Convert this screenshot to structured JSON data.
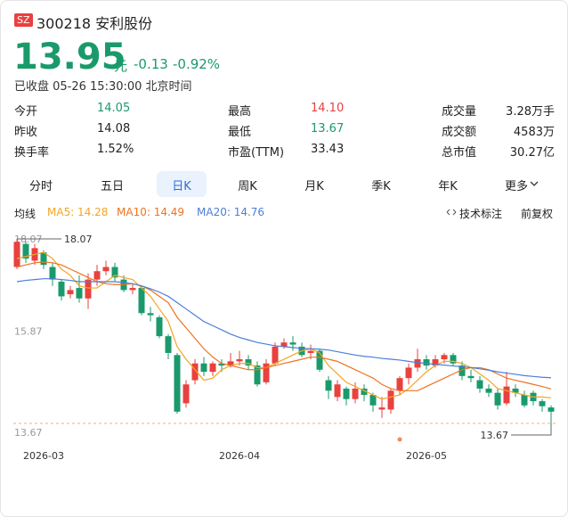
{
  "header": {
    "badge": "SZ",
    "code_name": "300218 安利股份",
    "price": "13.95",
    "unit": "元",
    "change": "-0.13",
    "change_pct": "-0.92%",
    "status": "已收盘 05-26 15:30:00 北京时间"
  },
  "stats": [
    [
      "今开",
      "14.05",
      "最高",
      "14.10",
      "成交量",
      "3.28万手"
    ],
    [
      "昨收",
      "14.08",
      "最低",
      "13.67",
      "成交额",
      "4583万"
    ],
    [
      "换手率",
      "1.52%",
      "市盈(TTM)",
      "33.43",
      "总市值",
      "30.27亿"
    ]
  ],
  "tabs": [
    "分时",
    "五日",
    "日K",
    "周K",
    "月K",
    "季K",
    "年K",
    "更多"
  ],
  "tools": [
    "技术标注",
    "前复权"
  ],
  "chart_data": {
    "type": "candlestick",
    "indicator_label": "均线",
    "categories": [
      null,
      null,
      null,
      "2026-03",
      null,
      null,
      null,
      null,
      null,
      null,
      null,
      null,
      null,
      null,
      null,
      null,
      null,
      null,
      null,
      null,
      null,
      null,
      null,
      null,
      null,
      "2026-04",
      null,
      null,
      null,
      null,
      null,
      null,
      null,
      null,
      null,
      null,
      null,
      null,
      null,
      null,
      null,
      null,
      null,
      null,
      null,
      null,
      "2026-05",
      null,
      null,
      null,
      null,
      null,
      null,
      null,
      null,
      null,
      null,
      null,
      null,
      null,
      null
    ],
    "open": [
      17.4,
      17.95,
      17.55,
      17.75,
      17.4,
      17.05,
      16.75,
      16.9,
      16.65,
      17.1,
      17.3,
      17.4,
      17.1,
      16.85,
      16.9,
      16.3,
      16.2,
      15.75,
      15.3,
      14.15,
      14.7,
      15.1,
      14.9,
      15.1,
      15.05,
      15.15,
      15.2,
      15.05,
      14.65,
      15.1,
      15.5,
      15.6,
      15.5,
      15.35,
      15.4,
      14.7,
      14.3,
      14.5,
      14.25,
      14.5,
      14.35,
      14.0,
      14.0,
      14.45,
      14.75,
      15.0,
      15.2,
      15.05,
      15.2,
      15.3,
      15.05,
      14.8,
      14.7,
      14.5,
      14.4,
      14.15,
      14.5,
      14.35,
      14.4,
      14.2,
      14.05
    ],
    "high": [
      18.07,
      18.02,
      17.95,
      17.8,
      17.5,
      17.1,
      16.95,
      17.2,
      17.25,
      17.45,
      17.55,
      17.5,
      17.2,
      17.0,
      16.95,
      16.45,
      16.25,
      15.8,
      15.35,
      14.7,
      15.2,
      15.25,
      15.15,
      15.2,
      15.35,
      15.4,
      15.3,
      15.15,
      15.2,
      15.6,
      15.7,
      15.75,
      15.6,
      15.55,
      15.45,
      14.8,
      14.7,
      14.55,
      14.65,
      14.6,
      14.4,
      14.3,
      14.5,
      14.8,
      15.1,
      15.45,
      15.3,
      15.3,
      15.35,
      15.35,
      15.15,
      14.95,
      14.8,
      14.6,
      14.5,
      14.9,
      14.6,
      14.45,
      14.45,
      14.25,
      14.1
    ],
    "low": [
      17.35,
      17.5,
      17.45,
      17.35,
      16.95,
      16.6,
      16.65,
      16.55,
      16.4,
      16.95,
      17.2,
      17.05,
      16.8,
      16.75,
      16.25,
      16.1,
      15.7,
      15.2,
      13.9,
      14.05,
      14.6,
      14.8,
      14.8,
      14.9,
      15.0,
      15.05,
      14.95,
      14.55,
      14.6,
      15.05,
      15.45,
      15.4,
      15.25,
      15.2,
      14.9,
      14.25,
      14.2,
      14.1,
      14.15,
      14.2,
      13.95,
      13.8,
      13.9,
      14.35,
      14.6,
      14.9,
      14.95,
      15.0,
      15.1,
      15.05,
      14.7,
      14.65,
      14.4,
      14.3,
      14.0,
      14.1,
      14.3,
      14.05,
      14.1,
      13.95,
      13.67
    ],
    "close": [
      18.0,
      17.6,
      17.85,
      17.45,
      17.1,
      16.7,
      16.85,
      16.65,
      17.1,
      17.3,
      17.4,
      17.15,
      16.85,
      16.9,
      16.3,
      16.25,
      15.75,
      15.35,
      13.95,
      14.6,
      15.1,
      14.9,
      15.1,
      15.05,
      15.15,
      15.2,
      15.05,
      14.6,
      15.1,
      15.5,
      15.6,
      15.55,
      15.3,
      15.4,
      14.95,
      14.45,
      14.6,
      14.25,
      14.5,
      14.35,
      14.1,
      14.05,
      14.45,
      14.75,
      15.0,
      15.2,
      15.05,
      15.2,
      15.3,
      15.1,
      14.8,
      14.75,
      14.5,
      14.4,
      14.1,
      14.55,
      14.4,
      14.1,
      14.2,
      14.08,
      13.95
    ],
    "up_color": "#e8413e",
    "down_color": "#1a9a6b",
    "lines": [
      {
        "name": "MA5: 14.28",
        "color": "#f2a623",
        "values": [
          17.6,
          17.65,
          17.7,
          17.75,
          17.6,
          17.35,
          17.2,
          16.95,
          16.9,
          16.9,
          17.05,
          17.2,
          17.15,
          17.1,
          16.9,
          16.7,
          16.4,
          16.1,
          15.5,
          15.2,
          14.95,
          14.7,
          14.75,
          14.95,
          15.05,
          15.1,
          15.1,
          15.0,
          15.0,
          15.1,
          15.2,
          15.3,
          15.4,
          15.45,
          15.35,
          15.05,
          14.85,
          14.65,
          14.55,
          14.45,
          14.35,
          14.25,
          14.3,
          14.35,
          14.5,
          14.7,
          14.9,
          15.05,
          15.15,
          15.15,
          15.1,
          15.0,
          14.85,
          14.7,
          14.5,
          14.45,
          14.4,
          14.35,
          14.3,
          14.3,
          14.28
        ]
      },
      {
        "name": "MA10: 14.49",
        "color": "#ee7322",
        "values": [
          17.4,
          17.45,
          17.5,
          17.52,
          17.5,
          17.45,
          17.35,
          17.25,
          17.15,
          17.05,
          17.0,
          16.98,
          16.98,
          17.0,
          16.95,
          16.85,
          16.7,
          16.55,
          16.2,
          15.95,
          15.7,
          15.45,
          15.25,
          15.1,
          15.05,
          15.0,
          14.95,
          14.95,
          15.0,
          15.05,
          15.1,
          15.15,
          15.2,
          15.25,
          15.25,
          15.2,
          15.15,
          15.05,
          14.95,
          14.85,
          14.75,
          14.6,
          14.5,
          14.45,
          14.45,
          14.45,
          14.55,
          14.65,
          14.75,
          14.85,
          14.95,
          15.0,
          15.0,
          14.95,
          14.85,
          14.75,
          14.7,
          14.65,
          14.6,
          14.55,
          14.49
        ]
      },
      {
        "name": "MA20: 14.76",
        "color": "#4c7fd8",
        "values": [
          17.05,
          17.08,
          17.1,
          17.12,
          17.12,
          17.1,
          17.08,
          17.05,
          17.05,
          17.05,
          17.05,
          17.05,
          17.03,
          17.0,
          16.95,
          16.88,
          16.8,
          16.7,
          16.55,
          16.4,
          16.25,
          16.1,
          16.0,
          15.9,
          15.8,
          15.72,
          15.66,
          15.6,
          15.56,
          15.52,
          15.5,
          15.48,
          15.46,
          15.45,
          15.44,
          15.42,
          15.38,
          15.34,
          15.3,
          15.27,
          15.25,
          15.22,
          15.2,
          15.18,
          15.15,
          15.12,
          15.1,
          15.08,
          15.06,
          15.04,
          15.02,
          15.0,
          14.97,
          14.94,
          14.9,
          14.87,
          14.84,
          14.81,
          14.79,
          14.77,
          14.76
        ]
      }
    ],
    "ylim": [
      13.67,
      18.07
    ],
    "yticks": [
      13.67,
      15.87,
      18.07
    ],
    "max_label": 18.07,
    "min_label": 13.67
  }
}
